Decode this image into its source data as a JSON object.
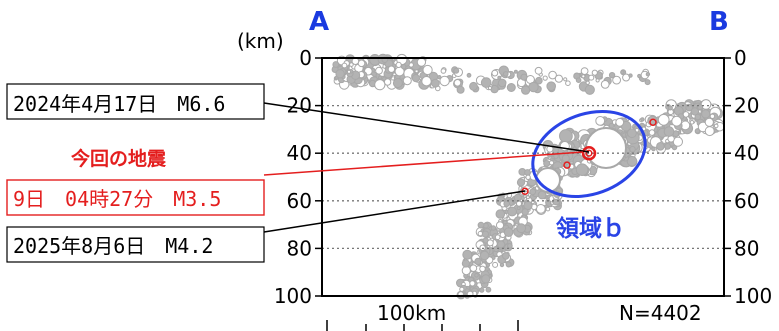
{
  "chart_data": {
    "type": "scatter",
    "title": "",
    "section_start_label": "A",
    "section_end_label": "B",
    "ylabel": "(km)",
    "y_axis": "depth, increasing downward",
    "ylim": [
      0,
      100
    ],
    "yticks": [
      "0",
      "20",
      "40",
      "60",
      "80",
      "100"
    ],
    "y_tick_values": [
      0,
      20,
      40,
      60,
      80,
      100
    ],
    "grid": "dotted horizontal lines at 20, 40, 60, 80 km",
    "distance_scale_label": "100km",
    "event_count_label": "N=4402",
    "region_label": "領域ｂ",
    "annotation_heading": "今回の地震",
    "colors": {
      "background_events": "#aaaaaa",
      "highlighted_events": "#e41e1e",
      "region_outline": "#2a44e6",
      "section_labels": "#1a3ae0",
      "frame": "#000000"
    },
    "highlighted_events": [
      {
        "label": "2024年4月17日　M6.6",
        "depth_km": 40,
        "color": "#e41e1e",
        "size": "large"
      },
      {
        "label": "9日　04時27分　M3.5",
        "depth_km": 40,
        "color": "#e41e1e",
        "size": "small"
      },
      {
        "label": "2025年8月6日　M4.2",
        "depth_km": 56,
        "color": "#e41e1e",
        "size": "small"
      }
    ],
    "other_marked_events_depth_km": [
      27,
      45
    ],
    "seismicity_bands": [
      {
        "depth_range_km": [
          5,
          22
        ],
        "description": "shallow cluster near A"
      },
      {
        "depth_range_km": [
          15,
          40
        ],
        "description": "dipping band toward B"
      },
      {
        "depth_range_km": [
          35,
          100
        ],
        "description": "deep tail below region b"
      }
    ]
  }
}
